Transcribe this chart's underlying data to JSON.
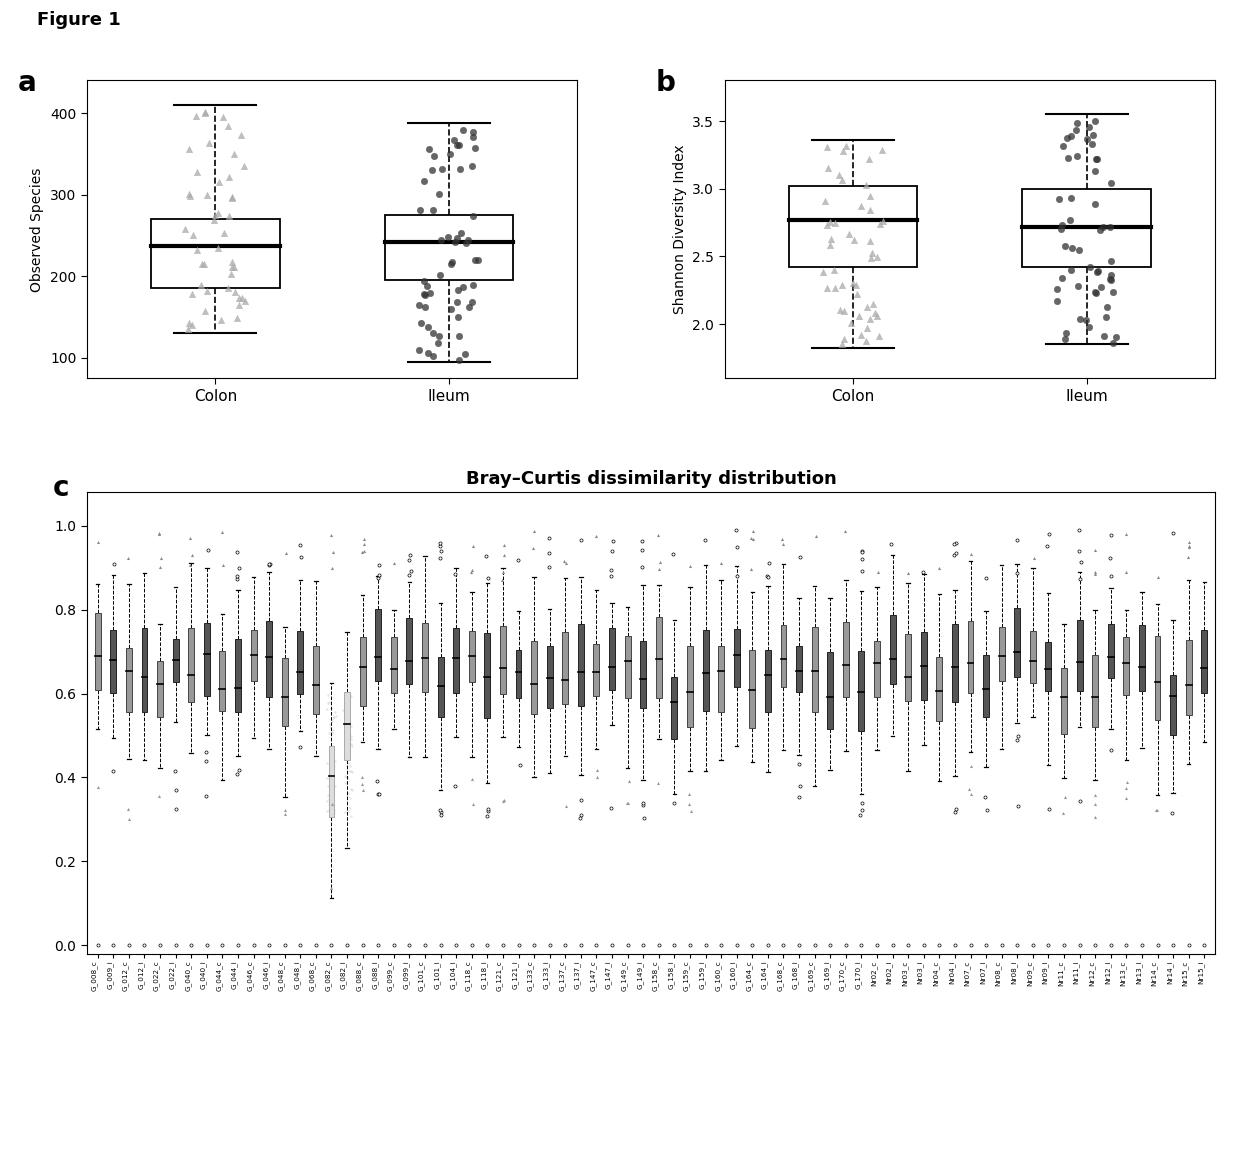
{
  "panel_a": {
    "colon": {
      "median": 237,
      "q1": 185,
      "q3": 270,
      "whisker_low": 130,
      "whisker_high": 410
    },
    "ileum": {
      "median": 242,
      "q1": 195,
      "q3": 275,
      "whisker_low": 95,
      "whisker_high": 388
    },
    "ylabel": "Observed Species",
    "ylim": [
      75,
      440
    ],
    "yticks": [
      100,
      200,
      300,
      400
    ]
  },
  "panel_b": {
    "colon": {
      "median": 2.77,
      "q1": 2.42,
      "q3": 3.02,
      "whisker_low": 1.82,
      "whisker_high": 3.36
    },
    "ileum": {
      "median": 2.72,
      "q1": 2.42,
      "q3": 3.0,
      "whisker_low": 1.85,
      "whisker_high": 3.55
    },
    "ylabel": "Shannon Diversity Index",
    "ylim": [
      1.6,
      3.8
    ],
    "yticks": [
      2.0,
      2.5,
      3.0,
      3.5
    ]
  },
  "panel_c": {
    "title": "Bray–Curtis dissimilarity distribution",
    "ylim": [
      -0.02,
      1.08
    ],
    "yticks": [
      0.0,
      0.2,
      0.4,
      0.6,
      0.8,
      1.0
    ],
    "xlabels": [
      "G_008_c",
      "G_009_i",
      "G_012_c",
      "G_012_i",
      "G_022_c",
      "G_022_i",
      "G_040_c",
      "G_040_i",
      "G_044_c",
      "G_044_i",
      "G_046_c",
      "G_046_i",
      "G_048_c",
      "G_048_i",
      "G_068_c",
      "G_082_c",
      "G_082_i",
      "G_088_c",
      "G_088_i",
      "G_099_c",
      "G_099_i",
      "G_101_c",
      "G_101_i",
      "G_104_i",
      "G_118_c",
      "G_118_i",
      "G_121_c",
      "G_121_i",
      "G_133_c",
      "G_133_i",
      "G_137_c",
      "G_137_i",
      "G_147_c",
      "G_147_i",
      "G_149_c",
      "G_149_i",
      "G_158_c",
      "G_158_i",
      "G_159_c",
      "G_159_i",
      "G_160_c",
      "G_160_i",
      "G_164_c",
      "G_164_i",
      "G_168_c",
      "G_168_i",
      "G_169_c",
      "G_169_i",
      "G_170_c",
      "G_170_i",
      "Nr02_c",
      "Nr02_i",
      "Nr03_c",
      "Nr03_i",
      "Nr04_c",
      "Nr04_i",
      "Nr07_c",
      "Nr07_i",
      "Nr08_c",
      "Nr08_i",
      "Nr09_c",
      "Nr09_i",
      "Nr11_c",
      "Nr11_i",
      "Nr12_c",
      "Nr12_i",
      "Nr13_c",
      "Nr13_i",
      "Nr14_c",
      "Nr14_i",
      "Nr15_c",
      "Nr15_i"
    ]
  }
}
